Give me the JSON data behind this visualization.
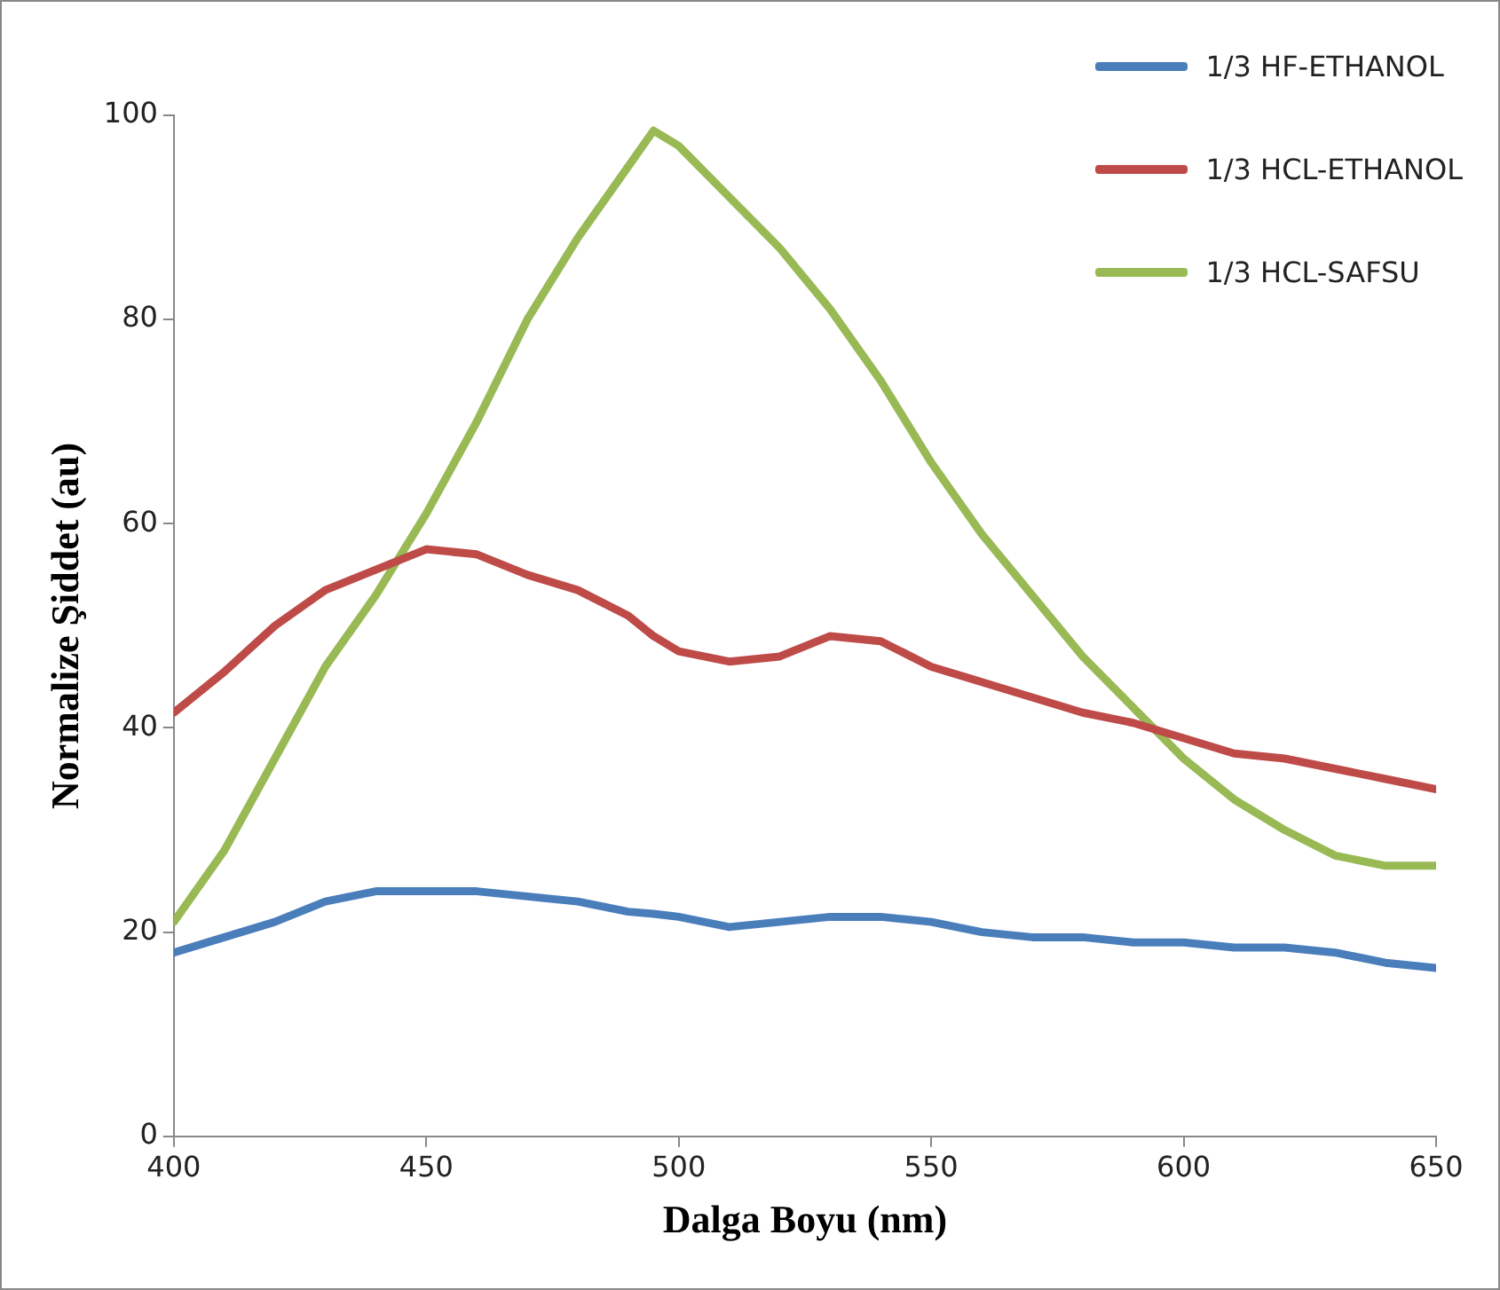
{
  "chart_data": {
    "type": "line",
    "xlabel": "Dalga Boyu (nm)",
    "ylabel": "Normalize Şiddet (au)",
    "x": [
      400,
      410,
      420,
      430,
      440,
      450,
      460,
      470,
      480,
      490,
      495,
      500,
      510,
      520,
      530,
      540,
      550,
      560,
      570,
      580,
      590,
      600,
      610,
      620,
      630,
      640,
      650
    ],
    "series": [
      {
        "name": "1/3 HF-ETHANOL",
        "color": "#4a7ebb",
        "values": [
          18,
          19.5,
          21,
          23,
          24,
          24,
          24,
          23.5,
          23,
          22,
          21.8,
          21.5,
          20.5,
          21,
          21.5,
          21.5,
          21,
          20,
          19.5,
          19.5,
          19,
          19,
          18.5,
          18.5,
          18,
          17,
          16.5
        ]
      },
      {
        "name": "1/3 HCL-ETHANOL",
        "color": "#be4b48",
        "values": [
          41.5,
          45.5,
          50,
          53.5,
          55.5,
          57.5,
          57,
          55,
          53.5,
          51,
          49,
          47.5,
          46.5,
          47,
          49,
          48.5,
          46,
          44.5,
          43,
          41.5,
          40.5,
          39,
          37.5,
          37,
          36,
          35,
          34
        ]
      },
      {
        "name": "1/3 HCL-SAFSU",
        "color": "#98b954",
        "values": [
          21,
          28,
          37,
          46,
          53,
          61,
          70,
          80,
          88,
          95,
          98.5,
          97,
          92,
          87,
          81,
          74,
          66,
          59,
          53,
          47,
          42,
          37,
          33,
          30,
          27.5,
          26.5,
          26.5
        ]
      }
    ],
    "xlim": [
      400,
      650
    ],
    "xticks": [
      400,
      450,
      500,
      550,
      600,
      650
    ],
    "ylim": [
      0,
      100
    ],
    "yticks": [
      0,
      20,
      40,
      60,
      80,
      100
    ],
    "grid": false,
    "legend": "top right",
    "marker": "none",
    "line_style": "solid"
  }
}
